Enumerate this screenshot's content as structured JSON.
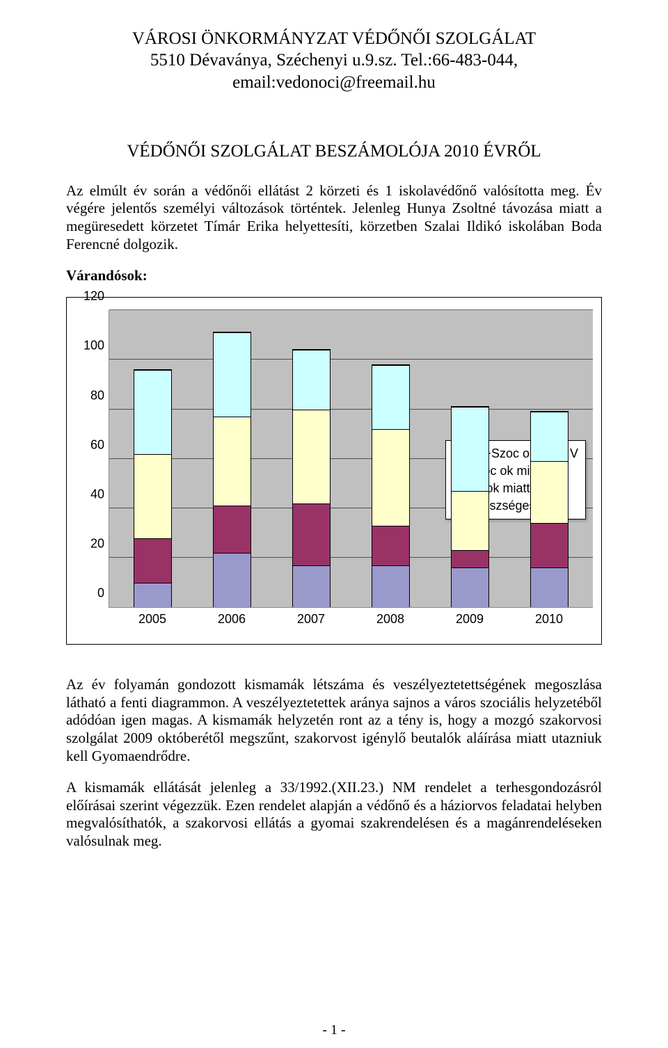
{
  "header": {
    "line1": "VÁROSI ÖNKORMÁNYZAT VÉDŐNŐI SZOLGÁLAT",
    "line2": "5510 Dévaványa, Széchenyi u.9.sz. Tel.:66-483-044,",
    "line3": "email:vedonoci@freemail.hu"
  },
  "subtitle": "VÉDŐNŐI SZOLGÁLAT BESZÁMOLÓJA 2010 ÉVRŐL",
  "paragraph1": "Az elmúlt év során a védőnői ellátást 2 körzeti és 1 iskolavédőnő valósította meg. Év végére jelentős személyi változások történtek. Jelenleg Hunya Zsoltné távozása miatt a megüresedett körzetet Tímár Erika helyettesíti, körzetben Szalai Ildikó iskolában Boda Ferencné dolgozik.",
  "section_label": "Várandósok:",
  "chart": {
    "type": "stacked-bar",
    "ylim_max": 120,
    "ytick_step": 20,
    "yticks": [
      "0",
      "20",
      "40",
      "60",
      "80",
      "100",
      "120"
    ],
    "categories": [
      "2005",
      "2006",
      "2007",
      "2008",
      "2009",
      "2010"
    ],
    "series": [
      {
        "key": "egeszseges",
        "label": "egészséges",
        "color": "#9999cc"
      },
      {
        "key": "eu_ok",
        "label": "eü ok miatt V",
        "color": "#993366"
      },
      {
        "key": "szoc_ok",
        "label": "Szoc ok miatt V",
        "color": "#ffffcc"
      },
      {
        "key": "eu_szoc_ok",
        "label": "Eü+Szoc ok miatt V",
        "color": "#ccffff"
      }
    ],
    "data": {
      "2005": {
        "egeszseges": 10,
        "eu_ok": 18,
        "szoc_ok": 34,
        "eu_szoc_ok": 34
      },
      "2006": {
        "egeszseges": 22,
        "eu_ok": 19,
        "szoc_ok": 36,
        "eu_szoc_ok": 34
      },
      "2007": {
        "egeszseges": 17,
        "eu_ok": 25,
        "szoc_ok": 38,
        "eu_szoc_ok": 24
      },
      "2008": {
        "egeszseges": 17,
        "eu_ok": 16,
        "szoc_ok": 39,
        "eu_szoc_ok": 26
      },
      "2009": {
        "egeszseges": 16,
        "eu_ok": 7,
        "szoc_ok": 24,
        "eu_szoc_ok": 34
      },
      "2010": {
        "egeszseges": 16,
        "eu_ok": 18,
        "szoc_ok": 25,
        "eu_szoc_ok": 20
      }
    },
    "plot_bg": "#c0c0c0",
    "grid_color": "#000000",
    "axis_color": "#888888",
    "legend_bg": "#ffffff",
    "tick_fontsize": 18
  },
  "paragraph2": "Az év folyamán gondozott kismamák létszáma és veszélyeztetettségének megoszlása látható a fenti diagrammon. A veszélyeztetettek aránya sajnos a város szociális helyzetéből adódóan igen magas. A kismamák helyzetén ront az a tény is, hogy a mozgó szakorvosi szolgálat 2009 októberétől megszűnt, szakorvost igénylő beutalók aláírása miatt utazniuk kell Gyomaendrődre.",
  "paragraph3": "A kismamák ellátását jelenleg a 33/1992.(XII.23.) NM rendelet a terhesgondozásról előírásai szerint végezzük. Ezen rendelet alapján a védőnő és a háziorvos feladatai helyben megvalósíthatók, a szakorvosi ellátás a gyomai szakrendelésen és a magánrendeléseken valósulnak meg.",
  "page_number": "- 1 -"
}
